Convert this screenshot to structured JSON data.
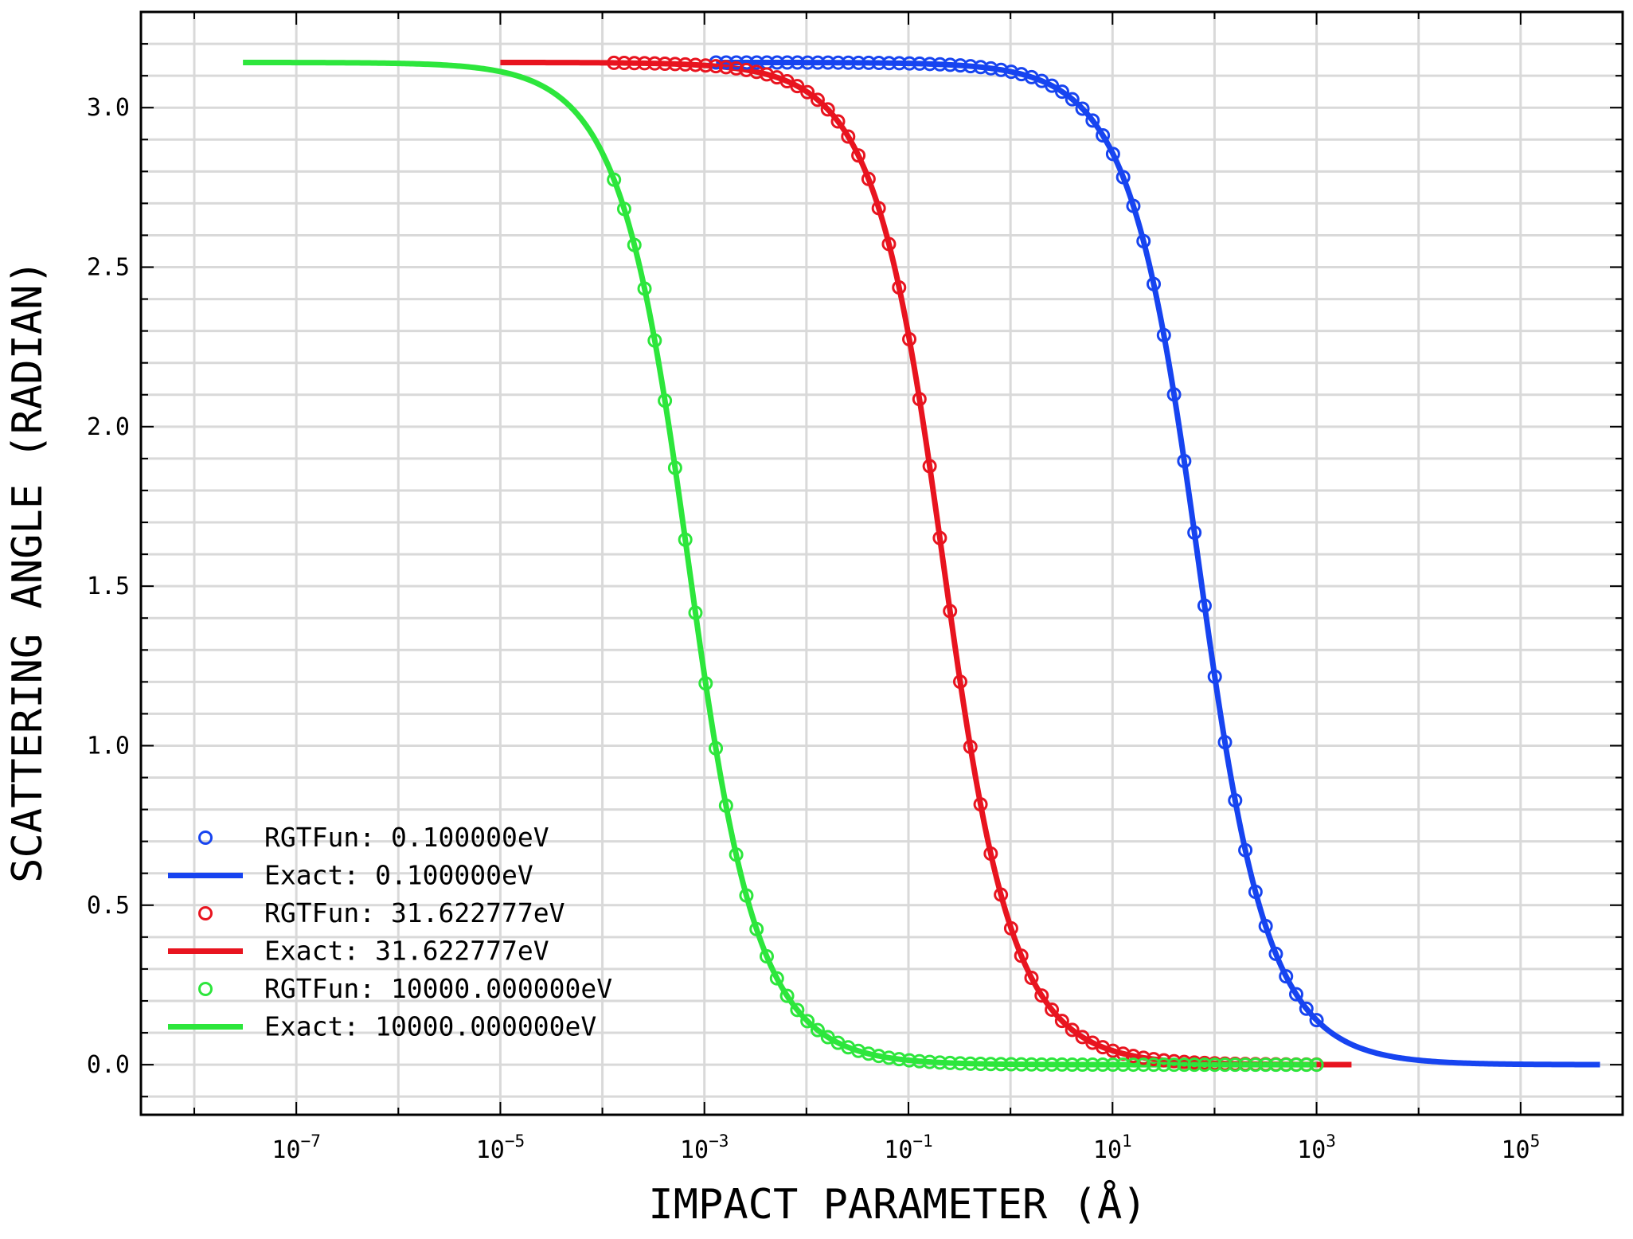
{
  "chart_data": {
    "type": "line",
    "title": "",
    "xlabel": "IMPACT PARAMETER (Å)",
    "ylabel": "SCATTERING ANGLE (RADIAN)",
    "xscale": "log",
    "xlim": [
      3e-09,
      1000000.0
    ],
    "ylim": [
      -0.157,
      3.3
    ],
    "x_ticks": [
      {
        "value": 1e-07,
        "base": "10",
        "exp": "−7"
      },
      {
        "value": 1e-05,
        "base": "10",
        "exp": "−5"
      },
      {
        "value": 0.001,
        "base": "10",
        "exp": "−3"
      },
      {
        "value": 0.1,
        "base": "10",
        "exp": "−1"
      },
      {
        "value": 10.0,
        "base": "10",
        "exp": "1"
      },
      {
        "value": 1000.0,
        "base": "10",
        "exp": "3"
      },
      {
        "value": 100000.0,
        "base": "10",
        "exp": "5"
      }
    ],
    "y_ticks": [
      {
        "value": 0.0,
        "label": "0.0"
      },
      {
        "value": 0.5,
        "label": "0.5"
      },
      {
        "value": 1.0,
        "label": "1.0"
      },
      {
        "value": 1.5,
        "label": "1.5"
      },
      {
        "value": 2.0,
        "label": "2.0"
      },
      {
        "value": 2.5,
        "label": "2.5"
      },
      {
        "value": 3.0,
        "label": "3.0"
      }
    ],
    "grid": true,
    "legend_position": "lower-left",
    "series": [
      {
        "name": "RGTFun: 0.100000eV",
        "kind": "markers",
        "color": "#1744f0",
        "b_half": 70.0,
        "x_start": 0.0013,
        "x_end": 1000,
        "n_points": 60
      },
      {
        "name": "Exact: 0.100000eV",
        "kind": "line",
        "color": "#1744f0",
        "b_half": 70.0,
        "x_start": 0.0013,
        "x_end": 600000
      },
      {
        "name": "RGTFun: 31.622777eV",
        "kind": "markers",
        "color": "#e8141f",
        "b_half": 0.22,
        "x_start": 0.00013,
        "x_end": 1000,
        "n_points": 70
      },
      {
        "name": "Exact: 31.622777eV",
        "kind": "line",
        "color": "#e8141f",
        "b_half": 0.22,
        "x_start": 1e-05,
        "x_end": 2200
      },
      {
        "name": "RGTFun: 10000.000000eV",
        "kind": "markers",
        "color": "#2de63c",
        "b_half": 0.0007,
        "x_start": 0.00013,
        "x_end": 1000,
        "n_points": 70
      },
      {
        "name": "Exact: 10000.000000eV",
        "kind": "line",
        "color": "#2de63c",
        "b_half": 0.0007,
        "x_start": 3e-08,
        "x_end": 1000
      }
    ]
  }
}
